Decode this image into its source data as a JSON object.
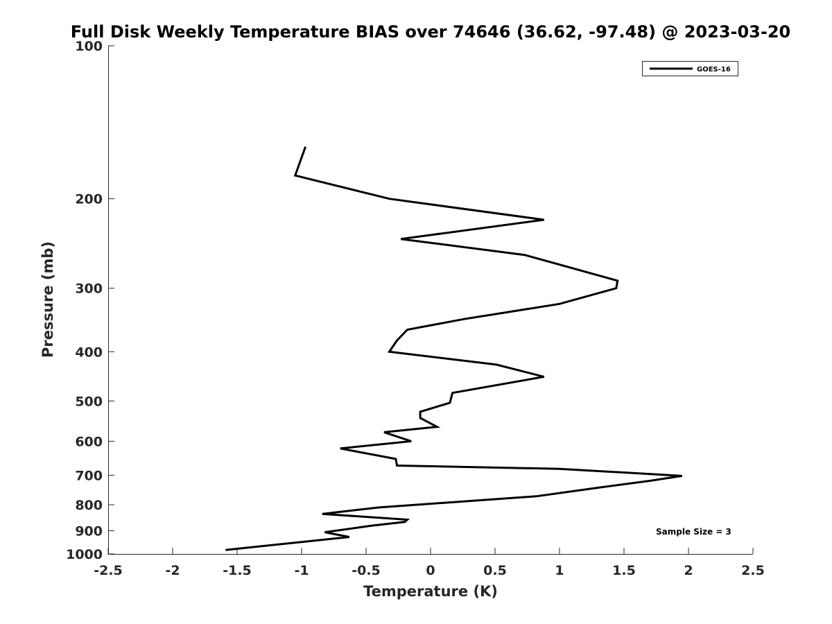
{
  "chart_data": {
    "type": "line",
    "title": "Full Disk Weekly Temperature BIAS over 74646 (36.62, -97.48) @ 2023-03-20",
    "xlabel": "Temperature (K)",
    "ylabel": "Pressure (mb)",
    "xlim": [
      -2.5,
      2.5
    ],
    "ylim": [
      100,
      1000
    ],
    "yscale": "log",
    "yreversed": true,
    "xticks": [
      -2.5,
      -2,
      -1.5,
      -1,
      -0.5,
      0,
      0.5,
      1,
      1.5,
      2,
      2.5
    ],
    "xtick_labels": [
      "-2.5",
      "-2",
      "-1.5",
      "-1",
      "-0.5",
      "0",
      "0.5",
      "1",
      "1.5",
      "2",
      "2.5"
    ],
    "yticks": [
      100,
      200,
      300,
      400,
      500,
      600,
      700,
      800,
      900,
      1000
    ],
    "ytick_labels": [
      "100",
      "200",
      "300",
      "400",
      "500",
      "600",
      "700",
      "800",
      "900",
      "1000"
    ],
    "grid": false,
    "legend_position": "top-right",
    "series": [
      {
        "name": "GOES-16",
        "color": "#000000",
        "points": [
          {
            "x": -0.97,
            "p": 158
          },
          {
            "x": -1.05,
            "p": 180
          },
          {
            "x": -0.32,
            "p": 200
          },
          {
            "x": 0.88,
            "p": 220
          },
          {
            "x": -0.23,
            "p": 240
          },
          {
            "x": 0.73,
            "p": 258
          },
          {
            "x": 1.45,
            "p": 290
          },
          {
            "x": 1.44,
            "p": 300
          },
          {
            "x": 1.0,
            "p": 322
          },
          {
            "x": 0.26,
            "p": 345
          },
          {
            "x": -0.18,
            "p": 362
          },
          {
            "x": -0.26,
            "p": 380
          },
          {
            "x": -0.32,
            "p": 400
          },
          {
            "x": 0.51,
            "p": 424
          },
          {
            "x": 0.88,
            "p": 448
          },
          {
            "x": 0.17,
            "p": 482
          },
          {
            "x": 0.15,
            "p": 504
          },
          {
            "x": -0.08,
            "p": 525
          },
          {
            "x": -0.08,
            "p": 540
          },
          {
            "x": 0.05,
            "p": 562
          },
          {
            "x": -0.36,
            "p": 576
          },
          {
            "x": -0.15,
            "p": 600
          },
          {
            "x": -0.7,
            "p": 620
          },
          {
            "x": -0.27,
            "p": 650
          },
          {
            "x": -0.26,
            "p": 670
          },
          {
            "x": 1.0,
            "p": 680
          },
          {
            "x": 1.95,
            "p": 702
          },
          {
            "x": 1.7,
            "p": 718
          },
          {
            "x": 1.31,
            "p": 740
          },
          {
            "x": 0.82,
            "p": 770
          },
          {
            "x": -0.4,
            "p": 810
          },
          {
            "x": -0.84,
            "p": 834
          },
          {
            "x": -0.18,
            "p": 856
          },
          {
            "x": -0.2,
            "p": 865
          },
          {
            "x": -0.46,
            "p": 880
          },
          {
            "x": -0.82,
            "p": 906
          },
          {
            "x": -0.63,
            "p": 926
          },
          {
            "x": -1.59,
            "p": 982
          }
        ]
      }
    ],
    "annotations": [
      {
        "text": "Sample Size = 3"
      }
    ]
  }
}
